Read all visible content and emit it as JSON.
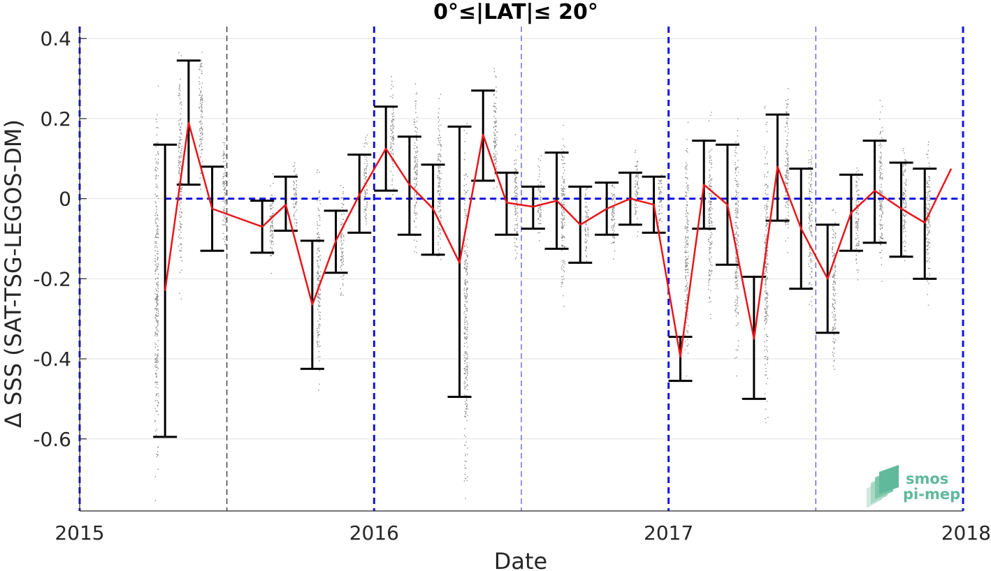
{
  "chart_data": {
    "type": "line",
    "title": "0°≤|LAT|≤ 20°",
    "xlabel": "Date",
    "ylabel": "Δ SSS (SAT-TSG-LEGOS-DM)",
    "xlim": [
      2015.0,
      2018.0
    ],
    "ylim": [
      -0.78,
      0.43
    ],
    "x_ticks": [
      {
        "value": 2015,
        "label": "2015"
      },
      {
        "value": 2016,
        "label": "2016"
      },
      {
        "value": 2017,
        "label": "2017"
      },
      {
        "value": 2018,
        "label": "2018"
      }
    ],
    "y_ticks": [
      {
        "value": 0.4,
        "label": "0.4"
      },
      {
        "value": 0.2,
        "label": "0.2"
      },
      {
        "value": 0,
        "label": "0"
      },
      {
        "value": -0.2,
        "label": "-0.2"
      },
      {
        "value": -0.4,
        "label": "-0.4"
      },
      {
        "value": -0.6,
        "label": "-0.6"
      }
    ],
    "grid": true,
    "zero_line": {
      "y": 0,
      "x_start": 2015.29
    },
    "year_lines": [
      2015.0,
      2016.0,
      2017.0,
      2018.0
    ],
    "half_year_lines": [
      2015.5,
      2016.5,
      2017.5
    ],
    "mean_series": {
      "x": [
        2015.29,
        2015.37,
        2015.45,
        2015.62,
        2015.7,
        2015.79,
        2015.87,
        2015.95,
        2016.04,
        2016.12,
        2016.2,
        2016.29,
        2016.37,
        2016.45,
        2016.54,
        2016.62,
        2016.7,
        2016.79,
        2016.87,
        2016.95,
        2017.04,
        2017.12,
        2017.2,
        2017.29,
        2017.37,
        2017.45,
        2017.54,
        2017.62,
        2017.7,
        2017.79,
        2017.87,
        2017.96
      ],
      "y": [
        -0.23,
        0.19,
        -0.025,
        -0.07,
        -0.015,
        -0.265,
        -0.105,
        0.01,
        0.125,
        0.035,
        -0.025,
        -0.16,
        0.16,
        -0.01,
        -0.02,
        -0.005,
        -0.065,
        -0.025,
        0.0,
        -0.015,
        -0.395,
        0.035,
        -0.015,
        -0.35,
        0.08,
        -0.075,
        -0.2,
        -0.035,
        0.02,
        -0.025,
        -0.06,
        0.075
      ]
    },
    "error_bars": [
      {
        "x": 2015.29,
        "low": -0.595,
        "high": 0.135
      },
      {
        "x": 2015.37,
        "low": 0.035,
        "high": 0.345
      },
      {
        "x": 2015.45,
        "low": -0.13,
        "high": 0.08
      },
      {
        "x": 2015.62,
        "low": -0.135,
        "high": -0.005
      },
      {
        "x": 2015.7,
        "low": -0.08,
        "high": 0.055
      },
      {
        "x": 2015.79,
        "low": -0.425,
        "high": -0.105
      },
      {
        "x": 2015.87,
        "low": -0.185,
        "high": -0.03
      },
      {
        "x": 2015.95,
        "low": -0.085,
        "high": 0.11
      },
      {
        "x": 2016.04,
        "low": 0.02,
        "high": 0.23
      },
      {
        "x": 2016.12,
        "low": -0.09,
        "high": 0.155
      },
      {
        "x": 2016.2,
        "low": -0.14,
        "high": 0.085
      },
      {
        "x": 2016.29,
        "low": -0.495,
        "high": 0.18
      },
      {
        "x": 2016.37,
        "low": 0.045,
        "high": 0.27
      },
      {
        "x": 2016.45,
        "low": -0.09,
        "high": 0.065
      },
      {
        "x": 2016.54,
        "low": -0.075,
        "high": 0.03
      },
      {
        "x": 2016.62,
        "low": -0.125,
        "high": 0.115
      },
      {
        "x": 2016.7,
        "low": -0.16,
        "high": 0.03
      },
      {
        "x": 2016.79,
        "low": -0.09,
        "high": 0.04
      },
      {
        "x": 2016.87,
        "low": -0.065,
        "high": 0.065
      },
      {
        "x": 2016.95,
        "low": -0.085,
        "high": 0.055
      },
      {
        "x": 2017.04,
        "low": -0.455,
        "high": -0.345
      },
      {
        "x": 2017.12,
        "low": -0.075,
        "high": 0.145
      },
      {
        "x": 2017.2,
        "low": -0.165,
        "high": 0.135
      },
      {
        "x": 2017.29,
        "low": -0.5,
        "high": -0.195
      },
      {
        "x": 2017.37,
        "low": -0.055,
        "high": 0.21
      },
      {
        "x": 2017.45,
        "low": -0.225,
        "high": 0.075
      },
      {
        "x": 2017.54,
        "low": -0.335,
        "high": -0.065
      },
      {
        "x": 2017.62,
        "low": -0.13,
        "high": 0.06
      },
      {
        "x": 2017.7,
        "low": -0.11,
        "high": 0.145
      },
      {
        "x": 2017.79,
        "low": -0.145,
        "high": 0.09
      },
      {
        "x": 2017.87,
        "low": -0.2,
        "high": 0.075
      }
    ],
    "scatter_columns": [
      {
        "x": 2015.26,
        "min": -0.78,
        "max": 0.33
      },
      {
        "x": 2015.34,
        "min": -0.25,
        "max": 0.39
      },
      {
        "x": 2015.41,
        "min": 0.0,
        "max": 0.42
      },
      {
        "x": 2015.49,
        "min": -0.19,
        "max": 0.2
      },
      {
        "x": 2015.65,
        "min": -0.21,
        "max": 0.08
      },
      {
        "x": 2015.73,
        "min": -0.1,
        "max": 0.14
      },
      {
        "x": 2015.81,
        "min": -0.5,
        "max": 0.1
      },
      {
        "x": 2015.89,
        "min": -0.27,
        "max": 0.06
      },
      {
        "x": 2015.97,
        "min": -0.1,
        "max": 0.19
      },
      {
        "x": 2016.06,
        "min": 0.0,
        "max": 0.32
      },
      {
        "x": 2016.14,
        "min": -0.17,
        "max": 0.32
      },
      {
        "x": 2016.22,
        "min": -0.21,
        "max": 0.29
      },
      {
        "x": 2016.31,
        "min": -0.78,
        "max": 0.25
      },
      {
        "x": 2016.41,
        "min": -0.03,
        "max": 0.34
      },
      {
        "x": 2016.48,
        "min": -0.21,
        "max": 0.17
      },
      {
        "x": 2016.56,
        "min": -0.12,
        "max": 0.12
      },
      {
        "x": 2016.64,
        "min": -0.3,
        "max": 0.22
      },
      {
        "x": 2016.72,
        "min": -0.18,
        "max": 0.05
      },
      {
        "x": 2016.81,
        "min": -0.18,
        "max": 0.09
      },
      {
        "x": 2016.89,
        "min": -0.1,
        "max": 0.16
      },
      {
        "x": 2016.97,
        "min": -0.11,
        "max": 0.1
      },
      {
        "x": 2017.06,
        "min": -0.48,
        "max": 0.23
      },
      {
        "x": 2017.14,
        "min": -0.36,
        "max": 0.23
      },
      {
        "x": 2017.23,
        "min": -0.46,
        "max": 0.26
      },
      {
        "x": 2017.33,
        "min": -0.59,
        "max": 0.25
      },
      {
        "x": 2017.4,
        "min": -0.18,
        "max": 0.32
      },
      {
        "x": 2017.48,
        "min": -0.3,
        "max": 0.2
      },
      {
        "x": 2017.56,
        "min": -0.47,
        "max": 0.03
      },
      {
        "x": 2017.64,
        "min": -0.22,
        "max": 0.13
      },
      {
        "x": 2017.72,
        "min": -0.24,
        "max": 0.27
      },
      {
        "x": 2017.8,
        "min": -0.2,
        "max": 0.18
      },
      {
        "x": 2017.88,
        "min": -0.27,
        "max": 0.19
      }
    ],
    "colors": {
      "mean_line": "#e8161b",
      "error_bar": "#000000",
      "scatter": "#8a8a8a",
      "year_line": "#1212e6",
      "half_year_line_early": "#222222",
      "half_year_line": "#4a4ae6",
      "grid": "#e2e2e2"
    }
  },
  "logo": {
    "line1": "smos",
    "line2": "pi-mep",
    "icon": "smos-pimep-logo-icon"
  }
}
